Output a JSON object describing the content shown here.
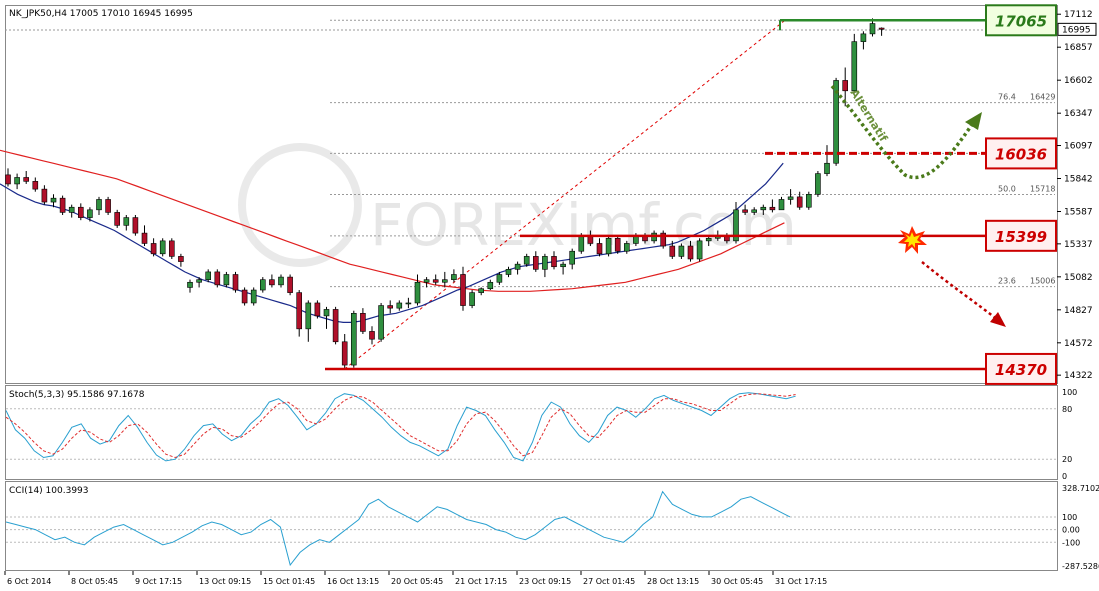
{
  "chart_data": {
    "type": "candlestick",
    "header": "NK_JPK50,H4  17005 17010 16945 16995",
    "y_ticks": [
      17112,
      16857,
      16602,
      16347,
      16097,
      15842,
      15587,
      15337,
      15082,
      14827,
      14572,
      14322
    ],
    "price_ylim": [
      14300,
      17160
    ],
    "current_price": "16995",
    "x_labels": [
      "6 Oct 2014",
      "8 Oct 05:45",
      "9 Oct 17:15",
      "13 Oct 09:15",
      "15 Oct 01:45",
      "16 Oct 13:15",
      "20 Oct 05:45",
      "21 Oct 17:15",
      "23 Oct 09:15",
      "27 Oct 01:45",
      "28 Oct 13:15",
      "30 Oct 05:45",
      "31 Oct 17:15"
    ],
    "candles": [
      {
        "o": 15870,
        "h": 15920,
        "l": 15780,
        "c": 15800
      },
      {
        "o": 15800,
        "h": 15880,
        "l": 15760,
        "c": 15850
      },
      {
        "o": 15850,
        "h": 15900,
        "l": 15800,
        "c": 15820
      },
      {
        "o": 15820,
        "h": 15850,
        "l": 15740,
        "c": 15760
      },
      {
        "o": 15760,
        "h": 15790,
        "l": 15640,
        "c": 15660
      },
      {
        "o": 15660,
        "h": 15720,
        "l": 15620,
        "c": 15690
      },
      {
        "o": 15690,
        "h": 15710,
        "l": 15560,
        "c": 15580
      },
      {
        "o": 15580,
        "h": 15640,
        "l": 15540,
        "c": 15620
      },
      {
        "o": 15620,
        "h": 15650,
        "l": 15520,
        "c": 15540
      },
      {
        "o": 15540,
        "h": 15620,
        "l": 15510,
        "c": 15600
      },
      {
        "o": 15600,
        "h": 15700,
        "l": 15560,
        "c": 15680
      },
      {
        "o": 15680,
        "h": 15700,
        "l": 15560,
        "c": 15580
      },
      {
        "o": 15580,
        "h": 15600,
        "l": 15460,
        "c": 15480
      },
      {
        "o": 15480,
        "h": 15560,
        "l": 15440,
        "c": 15540
      },
      {
        "o": 15540,
        "h": 15560,
        "l": 15400,
        "c": 15420
      },
      {
        "o": 15420,
        "h": 15480,
        "l": 15320,
        "c": 15340
      },
      {
        "o": 15340,
        "h": 15380,
        "l": 15240,
        "c": 15260
      },
      {
        "o": 15260,
        "h": 15380,
        "l": 15240,
        "c": 15360
      },
      {
        "o": 15360,
        "h": 15380,
        "l": 15220,
        "c": 15240
      },
      {
        "o": 15240,
        "h": 15260,
        "l": 15160,
        "c": 15200
      },
      {
        "o": 15000,
        "h": 15060,
        "l": 14960,
        "c": 15040
      },
      {
        "o": 15040,
        "h": 15080,
        "l": 15000,
        "c": 15060
      },
      {
        "o": 15060,
        "h": 15140,
        "l": 15040,
        "c": 15120
      },
      {
        "o": 15120,
        "h": 15140,
        "l": 15000,
        "c": 15020
      },
      {
        "o": 15020,
        "h": 15120,
        "l": 15000,
        "c": 15100
      },
      {
        "o": 15100,
        "h": 15120,
        "l": 14960,
        "c": 14980
      },
      {
        "o": 14980,
        "h": 15000,
        "l": 14860,
        "c": 14880
      },
      {
        "o": 14880,
        "h": 15000,
        "l": 14860,
        "c": 14980
      },
      {
        "o": 14980,
        "h": 15080,
        "l": 14960,
        "c": 15060
      },
      {
        "o": 15060,
        "h": 15100,
        "l": 15000,
        "c": 15020
      },
      {
        "o": 15020,
        "h": 15100,
        "l": 15000,
        "c": 15080
      },
      {
        "o": 15080,
        "h": 15100,
        "l": 14940,
        "c": 14960
      },
      {
        "o": 14960,
        "h": 14980,
        "l": 14620,
        "c": 14680
      },
      {
        "o": 14680,
        "h": 14900,
        "l": 14580,
        "c": 14880
      },
      {
        "o": 14880,
        "h": 14900,
        "l": 14760,
        "c": 14780
      },
      {
        "o": 14780,
        "h": 14850,
        "l": 14680,
        "c": 14830
      },
      {
        "o": 14830,
        "h": 14850,
        "l": 14560,
        "c": 14580
      },
      {
        "o": 14580,
        "h": 14640,
        "l": 14370,
        "c": 14400
      },
      {
        "o": 14400,
        "h": 14820,
        "l": 14380,
        "c": 14800
      },
      {
        "o": 14800,
        "h": 14840,
        "l": 14640,
        "c": 14660
      },
      {
        "o": 14660,
        "h": 14700,
        "l": 14560,
        "c": 14600
      },
      {
        "o": 14600,
        "h": 14880,
        "l": 14580,
        "c": 14860
      },
      {
        "o": 14860,
        "h": 14900,
        "l": 14800,
        "c": 14840
      },
      {
        "o": 14840,
        "h": 14900,
        "l": 14820,
        "c": 14880
      },
      {
        "o": 14880,
        "h": 14920,
        "l": 14840,
        "c": 14880
      },
      {
        "o": 14880,
        "h": 15100,
        "l": 14860,
        "c": 15040
      },
      {
        "o": 15040,
        "h": 15080,
        "l": 15000,
        "c": 15060
      },
      {
        "o": 15060,
        "h": 15100,
        "l": 15020,
        "c": 15040
      },
      {
        "o": 15040,
        "h": 15120,
        "l": 15000,
        "c": 15060
      },
      {
        "o": 15060,
        "h": 15140,
        "l": 15040,
        "c": 15100
      },
      {
        "o": 15100,
        "h": 15160,
        "l": 14820,
        "c": 14860
      },
      {
        "o": 14860,
        "h": 14980,
        "l": 14840,
        "c": 14960
      },
      {
        "o": 14960,
        "h": 15000,
        "l": 14940,
        "c": 14990
      },
      {
        "o": 14990,
        "h": 15060,
        "l": 14980,
        "c": 15040
      },
      {
        "o": 15040,
        "h": 15120,
        "l": 15020,
        "c": 15100
      },
      {
        "o": 15100,
        "h": 15160,
        "l": 15080,
        "c": 15140
      },
      {
        "o": 15140,
        "h": 15200,
        "l": 15100,
        "c": 15180
      },
      {
        "o": 15180,
        "h": 15260,
        "l": 15160,
        "c": 15240
      },
      {
        "o": 15240,
        "h": 15280,
        "l": 15120,
        "c": 15140
      },
      {
        "o": 15140,
        "h": 15260,
        "l": 15080,
        "c": 15240
      },
      {
        "o": 15240,
        "h": 15280,
        "l": 15140,
        "c": 15160
      },
      {
        "o": 15160,
        "h": 15200,
        "l": 15100,
        "c": 15180
      },
      {
        "o": 15180,
        "h": 15300,
        "l": 15140,
        "c": 15280
      },
      {
        "o": 15280,
        "h": 15420,
        "l": 15260,
        "c": 15400
      },
      {
        "o": 15400,
        "h": 15440,
        "l": 15320,
        "c": 15340
      },
      {
        "o": 15340,
        "h": 15380,
        "l": 15240,
        "c": 15260
      },
      {
        "o": 15260,
        "h": 15400,
        "l": 15240,
        "c": 15380
      },
      {
        "o": 15380,
        "h": 15400,
        "l": 15260,
        "c": 15280
      },
      {
        "o": 15280,
        "h": 15360,
        "l": 15260,
        "c": 15340
      },
      {
        "o": 15340,
        "h": 15420,
        "l": 15320,
        "c": 15400
      },
      {
        "o": 15400,
        "h": 15420,
        "l": 15340,
        "c": 15360
      },
      {
        "o": 15360,
        "h": 15440,
        "l": 15340,
        "c": 15420
      },
      {
        "o": 15420,
        "h": 15440,
        "l": 15300,
        "c": 15320
      },
      {
        "o": 15320,
        "h": 15360,
        "l": 15220,
        "c": 15240
      },
      {
        "o": 15240,
        "h": 15340,
        "l": 15220,
        "c": 15320
      },
      {
        "o": 15320,
        "h": 15360,
        "l": 15200,
        "c": 15220
      },
      {
        "o": 15220,
        "h": 15380,
        "l": 15200,
        "c": 15360
      },
      {
        "o": 15360,
        "h": 15400,
        "l": 15320,
        "c": 15380
      },
      {
        "o": 15380,
        "h": 15440,
        "l": 15360,
        "c": 15400
      },
      {
        "o": 15400,
        "h": 15420,
        "l": 15340,
        "c": 15360
      },
      {
        "o": 15360,
        "h": 15660,
        "l": 15340,
        "c": 15600
      },
      {
        "o": 15600,
        "h": 15640,
        "l": 15560,
        "c": 15580
      },
      {
        "o": 15580,
        "h": 15620,
        "l": 15560,
        "c": 15600
      },
      {
        "o": 15600,
        "h": 15640,
        "l": 15560,
        "c": 15620
      },
      {
        "o": 15620,
        "h": 15680,
        "l": 15580,
        "c": 15600
      },
      {
        "o": 15600,
        "h": 15700,
        "l": 15600,
        "c": 15680
      },
      {
        "o": 15680,
        "h": 15760,
        "l": 15640,
        "c": 15700
      },
      {
        "o": 15700,
        "h": 15740,
        "l": 15600,
        "c": 15620
      },
      {
        "o": 15620,
        "h": 15740,
        "l": 15600,
        "c": 15720
      },
      {
        "o": 15720,
        "h": 15900,
        "l": 15700,
        "c": 15880
      },
      {
        "o": 15880,
        "h": 16100,
        "l": 15860,
        "c": 15960
      },
      {
        "o": 15960,
        "h": 16620,
        "l": 15940,
        "c": 16600
      },
      {
        "o": 16600,
        "h": 16700,
        "l": 16400,
        "c": 16520
      },
      {
        "o": 16520,
        "h": 16960,
        "l": 16500,
        "c": 16900
      },
      {
        "o": 16900,
        "h": 16980,
        "l": 16840,
        "c": 16960
      },
      {
        "o": 16960,
        "h": 17080,
        "l": 16940,
        "c": 17040
      },
      {
        "o": 17005,
        "h": 17010,
        "l": 16945,
        "c": 16995
      }
    ],
    "sma_blue": [
      15800,
      15760,
      15720,
      15690,
      15660,
      15640,
      15630,
      15610,
      15590,
      15560,
      15530,
      15500,
      15470,
      15440,
      15400,
      15360,
      15320,
      15280,
      15240,
      15200,
      15160,
      15120,
      15090,
      15060,
      15040,
      15020,
      15000,
      14980,
      14960,
      14940,
      14920,
      14900,
      14880,
      14860,
      14830,
      14800,
      14780,
      14760,
      14740,
      14730,
      14730,
      14740,
      14760,
      14780,
      14790,
      14800,
      14820,
      14840,
      14860,
      14890,
      14920,
      14950,
      14980,
      15000,
      15030,
      15060,
      15090,
      15120,
      15140,
      15160,
      15170,
      15180,
      15190,
      15200,
      15210,
      15220,
      15230,
      15240,
      15250,
      15260,
      15270,
      15280,
      15290,
      15300,
      15310,
      15320,
      15330,
      15350,
      15380,
      15410,
      15440,
      15480,
      15520,
      15560,
      15620,
      15680,
      15740,
      15800,
      15880,
      15960
    ],
    "sma_red": [
      16060,
      16040,
      16020,
      16000,
      15980,
      15960,
      15940,
      15920,
      15900,
      15880,
      15860,
      15840,
      15810,
      15780,
      15750,
      15720,
      15690,
      15660,
      15630,
      15600,
      15570,
      15540,
      15510,
      15480,
      15450,
      15420,
      15390,
      15360,
      15330,
      15300,
      15270,
      15240,
      15210,
      15180,
      15160,
      15140,
      15120,
      15100,
      15080,
      15060,
      15040,
      15020,
      15010,
      15000,
      14990,
      14980,
      14975,
      14970,
      14970,
      14970,
      14970,
      14975,
      14980,
      14985,
      14990,
      15000,
      15010,
      15020,
      15030,
      15040,
      15060,
      15080,
      15100,
      15120,
      15140,
      15170,
      15200,
      15230,
      15260,
      15300,
      15340,
      15380,
      15420,
      15460,
      15500
    ],
    "fib_levels": [
      {
        "label": "76.4",
        "value": "16429"
      },
      {
        "label": "50.0",
        "value": "15718"
      },
      {
        "label": "23.6",
        "value": "15006"
      }
    ],
    "levels": {
      "resistance_top": "17065",
      "resistance_mid": "16036",
      "support_mid": "15399",
      "support_low": "14370"
    },
    "annotation": "Alternatif",
    "stoch": {
      "header": "Stoch(5,3,3) 95.1586 97.1678",
      "y_ticks": [
        "100",
        "80",
        "20",
        "0"
      ],
      "ylim": [
        0,
        100
      ],
      "main": [
        78,
        55,
        45,
        30,
        22,
        24,
        40,
        58,
        62,
        45,
        38,
        42,
        60,
        72,
        58,
        40,
        25,
        18,
        20,
        32,
        48,
        60,
        62,
        50,
        42,
        48,
        62,
        72,
        88,
        92,
        84,
        70,
        55,
        62,
        75,
        92,
        98,
        96,
        90,
        80,
        70,
        58,
        48,
        40,
        36,
        30,
        24,
        32,
        60,
        82,
        78,
        72,
        55,
        40,
        22,
        18,
        40,
        72,
        88,
        82,
        62,
        48,
        40,
        52,
        72,
        82,
        78,
        70,
        80,
        92,
        96,
        90,
        86,
        82,
        78,
        72,
        82,
        92,
        98,
        99,
        98,
        96,
        94,
        92,
        95
      ],
      "signal": [
        70,
        62,
        52,
        40,
        30,
        26,
        32,
        45,
        55,
        52,
        44,
        40,
        48,
        60,
        62,
        52,
        38,
        26,
        22,
        26,
        38,
        50,
        58,
        56,
        48,
        46,
        54,
        64,
        76,
        86,
        88,
        80,
        66,
        62,
        68,
        80,
        90,
        95,
        94,
        88,
        78,
        68,
        58,
        48,
        42,
        36,
        30,
        30,
        42,
        62,
        74,
        76,
        66,
        52,
        36,
        24,
        28,
        48,
        70,
        80,
        74,
        60,
        48,
        46,
        58,
        72,
        78,
        76,
        76,
        84,
        92,
        92,
        88,
        86,
        82,
        78,
        78,
        86,
        94,
        97,
        98,
        97,
        96,
        95,
        97
      ]
    },
    "cci": {
      "header": "CCI(14) 100.3993",
      "y_ticks": [
        "328.7102",
        "100",
        "0.00",
        "-100",
        "-287.5286"
      ],
      "ylim": [
        -287.5286,
        328.7102
      ],
      "values": [
        60,
        40,
        20,
        0,
        -40,
        -80,
        -60,
        -100,
        -120,
        -60,
        -20,
        20,
        40,
        0,
        -40,
        -80,
        -120,
        -100,
        -60,
        -20,
        30,
        60,
        40,
        0,
        -40,
        -20,
        40,
        80,
        20,
        -280,
        -180,
        -120,
        -80,
        -100,
        -40,
        20,
        80,
        200,
        240,
        180,
        140,
        100,
        60,
        120,
        180,
        160,
        120,
        80,
        60,
        40,
        0,
        -20,
        -60,
        -80,
        -40,
        20,
        80,
        100,
        60,
        20,
        -20,
        -60,
        -80,
        -100,
        -40,
        40,
        100,
        300,
        200,
        160,
        120,
        100,
        100,
        140,
        180,
        240,
        260,
        220,
        180,
        140,
        100
      ]
    }
  },
  "watermark": "FOREXimf.com"
}
